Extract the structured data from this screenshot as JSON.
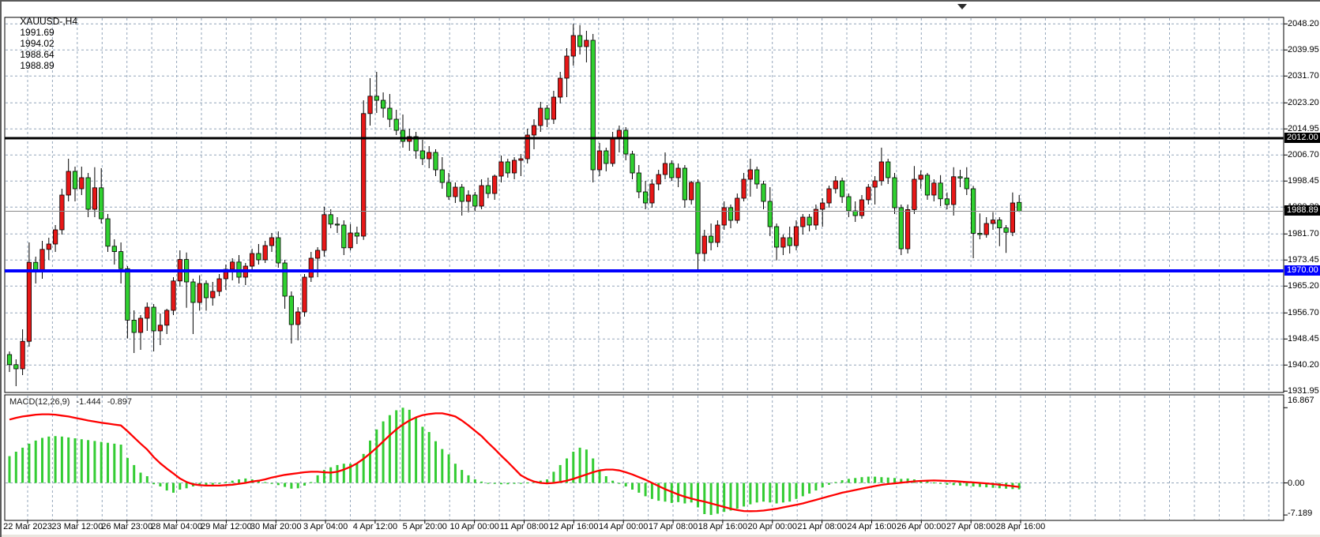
{
  "header": {
    "symbol_timeframe": "XAUUSD-,H4",
    "open": "1991.69",
    "high": "1994.02",
    "low": "1988.64",
    "close": "1988.89"
  },
  "main_chart": {
    "price_axis_labels": [
      "2048.20",
      "2039.95",
      "2031.70",
      "2023.20",
      "2014.95",
      "2006.70",
      "1998.45",
      "1990.20",
      "1981.70",
      "1973.45",
      "1965.20",
      "1956.70",
      "1948.45",
      "1940.20",
      "1931.95"
    ],
    "badges": {
      "resistance": "2012.00",
      "bid": "1988.89",
      "support": "1970.00"
    }
  },
  "macd_panel": {
    "label": "MACD(12,26,9)",
    "macd_value": "-1.444",
    "signal_value": "-0.897",
    "axis_labels": [
      "16.867",
      "0.00",
      "-7.189"
    ]
  },
  "colors": {
    "bull_body": "#e81717",
    "bear_body": "#30d130",
    "wick": "#000000",
    "grid": "#93a5ba",
    "resistance_line": "#000000",
    "support_line": "#0000fe",
    "bid_line": "#8a8a8a",
    "macd_histogram": "#33cc33",
    "macd_signal": "#fe0000",
    "badge_dark": "#000000",
    "badge_blue": "#0000fe"
  },
  "chart_data": {
    "type": "candlestick+macd",
    "symbol": "XAUUSD-",
    "timeframe": "H4",
    "title": "XAUUSD-,H4 1991.69 1994.02 1988.64 1988.89",
    "price_ylim": [
      1931.95,
      2051.5
    ],
    "macd_ylim": [
      -7.189,
      16.867
    ],
    "grid": true,
    "price_gridlines": [
      2048.2,
      2039.95,
      2031.7,
      2023.2,
      2014.95,
      2006.7,
      1998.45,
      1990.2,
      1981.7,
      1973.45,
      1965.2,
      1956.7,
      1948.45,
      1940.2,
      1931.95
    ],
    "levels": [
      {
        "name": "resistance",
        "price": 2012.0,
        "color": "#000000",
        "width": 3
      },
      {
        "name": "support",
        "price": 1970.0,
        "color": "#0000fe",
        "width": 4
      }
    ],
    "bid_price": 1988.89,
    "macd_axis_values": [
      16.867,
      0.0,
      -7.189
    ],
    "time_labels": [
      "22 Mar 2023",
      "23 Mar 12:00",
      "26 Mar 23:00",
      "28 Mar 04:00",
      "29 Mar 12:00",
      "30 Mar 20:00",
      "3 Apr 04:00",
      "4 Apr 12:00",
      "5 Apr 20:00",
      "10 Apr 00:00",
      "11 Apr 08:00",
      "12 Apr 16:00",
      "14 Apr 00:00",
      "17 Apr 08:00",
      "18 Apr 16:00",
      "20 Apr 00:00",
      "21 Apr 08:00",
      "24 Apr 16:00",
      "26 Apr 00:00",
      "27 Apr 08:00",
      "28 Apr 16:00"
    ],
    "candles": [
      [
        1943.5,
        1944.5,
        1938.0,
        1940.3
      ],
      [
        1940.3,
        1942.0,
        1933.5,
        1939.0
      ],
      [
        1939.0,
        1951.5,
        1937.0,
        1947.7
      ],
      [
        1947.7,
        1979.0,
        1946.0,
        1972.7
      ],
      [
        1972.7,
        1974.5,
        1966.0,
        1970.2
      ],
      [
        1970.2,
        1979.5,
        1967.5,
        1976.8
      ],
      [
        1976.8,
        1980.5,
        1973.5,
        1978.5
      ],
      [
        1978.5,
        1984.5,
        1976.0,
        1983.0
      ],
      [
        1983.0,
        1996.0,
        1981.5,
        1994.0
      ],
      [
        1994.0,
        2005.5,
        1992.0,
        2001.5
      ],
      [
        2001.5,
        2003.0,
        1992.0,
        1996.0
      ],
      [
        1996.0,
        2003.0,
        1994.0,
        1999.5
      ],
      [
        1999.5,
        2001.0,
        1987.0,
        1989.5
      ],
      [
        1989.5,
        2002.8,
        1987.0,
        1996.3
      ],
      [
        1996.3,
        2002.5,
        1985.0,
        1986.5
      ],
      [
        1986.5,
        1988.0,
        1976.0,
        1977.8
      ],
      [
        1977.8,
        1980.0,
        1972.0,
        1976.1
      ],
      [
        1976.1,
        1979.0,
        1966.0,
        1970.7
      ],
      [
        1970.7,
        1971.5,
        1948.6,
        1954.4
      ],
      [
        1954.4,
        1957.5,
        1944.0,
        1950.5
      ],
      [
        1950.5,
        1956.0,
        1945.0,
        1955.0
      ],
      [
        1955.0,
        1960.0,
        1951.0,
        1958.5
      ],
      [
        1958.5,
        1959.5,
        1944.5,
        1951.0
      ],
      [
        1951.0,
        1956.5,
        1946.5,
        1952.8
      ],
      [
        1952.8,
        1958.0,
        1950.0,
        1957.5
      ],
      [
        1957.5,
        1968.0,
        1956.0,
        1966.8
      ],
      [
        1966.8,
        1976.5,
        1965.0,
        1973.6
      ],
      [
        1973.6,
        1975.8,
        1958.3,
        1966.5
      ],
      [
        1966.5,
        1967.5,
        1950.0,
        1960.0
      ],
      [
        1960.0,
        1968.6,
        1957.4,
        1966.0
      ],
      [
        1966.0,
        1967.0,
        1957.4,
        1961.5
      ],
      [
        1961.5,
        1966.5,
        1959.0,
        1963.5
      ],
      [
        1963.5,
        1969.0,
        1962.0,
        1967.5
      ],
      [
        1967.5,
        1972.0,
        1964.0,
        1970.5
      ],
      [
        1970.5,
        1974.0,
        1967.0,
        1972.8
      ],
      [
        1972.8,
        1975.0,
        1966.0,
        1968.0
      ],
      [
        1968.0,
        1972.5,
        1965.5,
        1971.5
      ],
      [
        1971.5,
        1977.0,
        1970.0,
        1975.5
      ],
      [
        1975.5,
        1978.5,
        1972.0,
        1973.5
      ],
      [
        1973.5,
        1979.5,
        1972.5,
        1978.0
      ],
      [
        1978.0,
        1982.0,
        1976.0,
        1980.5
      ],
      [
        1980.5,
        1982.5,
        1971.0,
        1972.5
      ],
      [
        1972.5,
        1973.5,
        1958.0,
        1962.0
      ],
      [
        1962.0,
        1963.5,
        1947.0,
        1953.0
      ],
      [
        1953.0,
        1958.5,
        1948.0,
        1957.0
      ],
      [
        1957.0,
        1969.0,
        1955.5,
        1968.0
      ],
      [
        1968.0,
        1976.0,
        1966.5,
        1974.0
      ],
      [
        1974.0,
        1977.5,
        1968.0,
        1976.5
      ],
      [
        1976.5,
        1990.3,
        1974.5,
        1987.8
      ],
      [
        1987.8,
        1989.5,
        1983.5,
        1984.8
      ],
      [
        1984.8,
        1987.0,
        1982.0,
        1984.5
      ],
      [
        1984.5,
        1986.0,
        1975.0,
        1977.3
      ],
      [
        1977.3,
        1984.8,
        1976.5,
        1982.0
      ],
      [
        1982.0,
        1984.0,
        1978.5,
        1981.0
      ],
      [
        1981.0,
        2024.0,
        1979.8,
        2019.8
      ],
      [
        2019.8,
        2031.0,
        2016.0,
        2025.3
      ],
      [
        2025.3,
        2033.0,
        2020.0,
        2024.0
      ],
      [
        2024.0,
        2026.5,
        2018.5,
        2021.5
      ],
      [
        2021.5,
        2026.0,
        2015.5,
        2018.0
      ],
      [
        2018.0,
        2021.0,
        2013.0,
        2014.5
      ],
      [
        2014.5,
        2019.5,
        2009.0,
        2011.0
      ],
      [
        2011.0,
        2015.0,
        2008.0,
        2012.5
      ],
      [
        2012.5,
        2014.0,
        2005.5,
        2008.0
      ],
      [
        2008.0,
        2011.5,
        2003.5,
        2005.5
      ],
      [
        2005.5,
        2009.5,
        2002.5,
        2007.5
      ],
      [
        2007.5,
        2008.5,
        2000.0,
        2002.0
      ],
      [
        2002.0,
        2006.0,
        1996.0,
        1998.0
      ],
      [
        1998.0,
        2001.0,
        1992.5,
        1993.5
      ],
      [
        1993.5,
        1998.0,
        1991.5,
        1996.5
      ],
      [
        1996.5,
        1997.5,
        1987.5,
        1992.0
      ],
      [
        1992.0,
        1995.5,
        1988.5,
        1994.0
      ],
      [
        1994.0,
        1995.0,
        1989.0,
        1990.5
      ],
      [
        1990.5,
        1999.0,
        1989.5,
        1997.0
      ],
      [
        1997.0,
        1999.5,
        1993.0,
        1994.5
      ],
      [
        1994.5,
        2000.5,
        1992.5,
        2000.0
      ],
      [
        2000.0,
        2006.5,
        1998.0,
        2004.5
      ],
      [
        2004.5,
        2005.5,
        1999.5,
        2001.0
      ],
      [
        2001.0,
        2006.0,
        1999.0,
        2005.0
      ],
      [
        2005.0,
        2007.0,
        2000.0,
        2005.5
      ],
      [
        2005.5,
        2015.0,
        2004.0,
        2013.0
      ],
      [
        2013.0,
        2018.0,
        2008.5,
        2016.0
      ],
      [
        2016.0,
        2023.5,
        2014.0,
        2021.5
      ],
      [
        2021.5,
        2022.5,
        2015.5,
        2018.0
      ],
      [
        2018.0,
        2027.0,
        2016.5,
        2025.0
      ],
      [
        2025.0,
        2033.0,
        2023.0,
        2031.0
      ],
      [
        2031.0,
        2040.5,
        2025.0,
        2038.0
      ],
      [
        2038.0,
        2048.2,
        2035.0,
        2044.5
      ],
      [
        2044.5,
        2047.8,
        2038.5,
        2041.0
      ],
      [
        2041.0,
        2046.0,
        2036.0,
        2043.0
      ],
      [
        2043.0,
        2045.0,
        1998.0,
        2002.0
      ],
      [
        2002.0,
        2010.5,
        2000.0,
        2008.0
      ],
      [
        2008.0,
        2009.0,
        2001.5,
        2004.0
      ],
      [
        2004.0,
        2014.0,
        2003.0,
        2012.0
      ],
      [
        2012.0,
        2016.0,
        2007.5,
        2014.5
      ],
      [
        2014.5,
        2015.5,
        2005.0,
        2007.0
      ],
      [
        2007.0,
        2008.0,
        1999.0,
        2001.0
      ],
      [
        2001.0,
        2003.5,
        1993.0,
        1995.0
      ],
      [
        1995.0,
        1998.5,
        1989.5,
        1991.5
      ],
      [
        1991.5,
        1999.0,
        1990.0,
        1997.5
      ],
      [
        1997.5,
        2002.0,
        1995.5,
        2000.5
      ],
      [
        2000.5,
        2007.5,
        1999.0,
        2004.0
      ],
      [
        2004.0,
        2005.0,
        1998.5,
        1999.5
      ],
      [
        1999.5,
        2004.0,
        1996.5,
        2002.5
      ],
      [
        2002.5,
        2003.5,
        1990.0,
        1992.5
      ],
      [
        1992.5,
        1998.5,
        1991.0,
        1998.0
      ],
      [
        1998.0,
        1999.0,
        1969.5,
        1975.5
      ],
      [
        1975.5,
        1983.0,
        1973.0,
        1981.0
      ],
      [
        1981.0,
        1985.0,
        1976.5,
        1979.0
      ],
      [
        1979.0,
        1986.0,
        1977.5,
        1984.5
      ],
      [
        1984.5,
        1992.0,
        1983.0,
        1990.0
      ],
      [
        1990.0,
        1991.0,
        1983.5,
        1986.0
      ],
      [
        1986.0,
        1994.5,
        1985.0,
        1993.0
      ],
      [
        1993.0,
        2001.0,
        1992.0,
        1999.0
      ],
      [
        1999.0,
        2005.5,
        1993.5,
        2002.0
      ],
      [
        2002.0,
        2003.0,
        1996.0,
        1997.5
      ],
      [
        1997.5,
        1998.5,
        1989.5,
        1992.0
      ],
      [
        1992.0,
        1996.5,
        1981.0,
        1984.0
      ],
      [
        1984.0,
        1985.0,
        1973.3,
        1977.5
      ],
      [
        1977.5,
        1981.5,
        1975.0,
        1980.5
      ],
      [
        1980.5,
        1984.0,
        1975.5,
        1978.0
      ],
      [
        1978.0,
        1986.0,
        1976.5,
        1984.0
      ],
      [
        1984.0,
        1988.0,
        1981.5,
        1987.0
      ],
      [
        1987.0,
        1988.0,
        1982.5,
        1984.5
      ],
      [
        1984.5,
        1991.0,
        1983.0,
        1989.5
      ],
      [
        1989.5,
        1993.0,
        1984.0,
        1991.5
      ],
      [
        1991.5,
        1997.0,
        1990.0,
        1996.0
      ],
      [
        1996.0,
        2000.0,
        1994.5,
        1998.5
      ],
      [
        1998.5,
        1999.5,
        1991.5,
        1993.5
      ],
      [
        1993.5,
        1994.5,
        1987.0,
        1989.0
      ],
      [
        1989.0,
        1992.0,
        1985.5,
        1987.5
      ],
      [
        1987.5,
        1994.0,
        1986.5,
        1992.5
      ],
      [
        1992.5,
        1997.5,
        1991.0,
        1996.5
      ],
      [
        1996.5,
        2000.0,
        1991.0,
        1998.5
      ],
      [
        1998.5,
        2009.0,
        1997.0,
        2004.5
      ],
      [
        2004.5,
        2005.5,
        1997.5,
        1999.5
      ],
      [
        1999.5,
        2001.0,
        1988.0,
        1990.0
      ],
      [
        1990.0,
        1991.0,
        1975.0,
        1977.0
      ],
      [
        1977.0,
        1991.0,
        1975.5,
        1989.4
      ],
      [
        1989.4,
        2003.2,
        1988.0,
        1999.0
      ],
      [
        1999.0,
        2001.8,
        1996.0,
        2000.3
      ],
      [
        2000.3,
        2001.0,
        1992.5,
        1994.0
      ],
      [
        1994.0,
        1999.0,
        1992.0,
        1997.8
      ],
      [
        1997.8,
        2000.3,
        1990.5,
        1992.8
      ],
      [
        1992.8,
        1994.8,
        1989.5,
        1991.0
      ],
      [
        1991.0,
        2002.8,
        1987.5,
        1999.8
      ],
      [
        1999.8,
        2002.0,
        1996.5,
        1999.4
      ],
      [
        1999.4,
        2002.8,
        1994.0,
        1996.0
      ],
      [
        1996.0,
        1996.9,
        1974.0,
        1981.9
      ],
      [
        1981.9,
        1988.2,
        1980.0,
        1981.5
      ],
      [
        1981.5,
        1987.0,
        1980.5,
        1985.0
      ],
      [
        1985.0,
        1988.6,
        1983.0,
        1986.1
      ],
      [
        1986.1,
        1987.0,
        1977.8,
        1983.6
      ],
      [
        1983.6,
        1984.5,
        1975.7,
        1982.2
      ],
      [
        1982.2,
        1994.8,
        1981.0,
        1991.5
      ],
      [
        1991.69,
        1994.02,
        1988.64,
        1988.89
      ]
    ],
    "macd_histogram": [
      6.0,
      7.0,
      7.9,
      8.8,
      9.5,
      10.1,
      10.4,
      10.5,
      10.4,
      10.2,
      10.0,
      9.8,
      9.6,
      9.4,
      9.2,
      9.0,
      8.8,
      8.6,
      5.6,
      4.0,
      2.3,
      1.5,
      -0.3,
      -0.8,
      -1.7,
      -2.2,
      -1.5,
      -1.2,
      -0.8,
      -0.5,
      -0.5,
      -0.4,
      -0.2,
      0.2,
      0.5,
      0.8,
      1.0,
      0.8,
      0.5,
      0.2,
      -0.2,
      -0.5,
      -0.9,
      -1.3,
      -1.2,
      -0.6,
      0.2,
      1.7,
      2.9,
      3.5,
      4.0,
      4.3,
      4.3,
      4.5,
      6.5,
      9.5,
      12.0,
      13.8,
      15.2,
      16.3,
      16.867,
      16.4,
      14.7,
      12.6,
      11.4,
      9.35,
      7.6,
      6.4,
      4.3,
      2.9,
      1.7,
      0.8,
      0.3,
      0.0,
      -0.2,
      -0.3,
      -0.3,
      -0.2,
      -0.1,
      0.1,
      0.3,
      0.5,
      0.8,
      2.5,
      4.0,
      5.5,
      7.0,
      7.9,
      7.5,
      5.5,
      3.0,
      1.5,
      0.5,
      -0.2,
      -0.8,
      -1.5,
      -2.2,
      -3.0,
      -3.6,
      -4.0,
      -4.2,
      -4.5,
      -4.3,
      -4.6,
      -4.4,
      -5.5,
      -7.0,
      -7.189,
      -6.9,
      -6.5,
      -6.2,
      -5.8,
      -5.3,
      -4.8,
      -4.4,
      -4.2,
      -4.4,
      -4.6,
      -4.4,
      -4.2,
      -3.6,
      -3.0,
      -2.4,
      -1.7,
      -1.0,
      -0.4,
      0.2,
      0.6,
      0.9,
      1.1,
      1.3,
      1.4,
      1.4,
      1.3,
      1.2,
      1.1,
      0.9,
      1.0,
      0.8,
      0.6,
      0.4,
      0.1,
      -0.2,
      -0.4,
      -0.5,
      -0.6,
      -0.7,
      -0.8,
      -0.9,
      -1.0,
      -1.1,
      -1.2,
      -1.3,
      -1.38,
      -1.444
    ],
    "macd_signal": [
      14.2,
      14.6,
      14.9,
      15.1,
      15.3,
      15.4,
      15.4,
      15.3,
      15.1,
      14.9,
      14.6,
      14.3,
      14.0,
      13.75,
      13.5,
      13.3,
      13.1,
      12.9,
      11.6,
      10.2,
      8.8,
      7.5,
      5.8,
      4.4,
      3.2,
      2.1,
      1.0,
      0.2,
      -0.3,
      -0.5,
      -0.6,
      -0.6,
      -0.6,
      -0.5,
      -0.4,
      -0.2,
      0.0,
      0.3,
      0.5,
      0.8,
      1.2,
      1.5,
      1.8,
      2.0,
      2.2,
      2.4,
      2.5,
      2.5,
      2.4,
      2.3,
      2.5,
      3.0,
      3.6,
      4.4,
      5.4,
      6.6,
      7.9,
      9.3,
      10.7,
      12.0,
      13.1,
      14.0,
      14.7,
      15.2,
      15.45,
      15.6,
      15.6,
      15.3,
      14.9,
      14.0,
      12.9,
      11.7,
      10.5,
      9.0,
      7.6,
      6.1,
      4.7,
      3.2,
      1.7,
      0.9,
      0.3,
      0.0,
      -0.1,
      0.0,
      0.2,
      0.5,
      0.9,
      1.4,
      1.9,
      2.4,
      2.8,
      3.0,
      3.0,
      2.8,
      2.4,
      1.9,
      1.3,
      0.7,
      0.0,
      -0.7,
      -1.4,
      -2.0,
      -2.6,
      -3.1,
      -3.5,
      -3.9,
      -4.2,
      -4.6,
      -5.0,
      -5.4,
      -5.8,
      -6.1,
      -6.3,
      -6.35,
      -6.3,
      -6.2,
      -6.0,
      -5.8,
      -5.5,
      -5.2,
      -4.9,
      -4.6,
      -4.2,
      -3.8,
      -3.4,
      -3.0,
      -2.6,
      -2.2,
      -1.9,
      -1.6,
      -1.3,
      -1.0,
      -0.7,
      -0.45,
      -0.25,
      -0.1,
      0.05,
      0.2,
      0.35,
      0.45,
      0.5,
      0.55,
      0.5,
      0.45,
      0.4,
      0.3,
      0.2,
      0.1,
      0.0,
      -0.1,
      -0.25,
      -0.4,
      -0.55,
      -0.72,
      -0.897
    ]
  }
}
